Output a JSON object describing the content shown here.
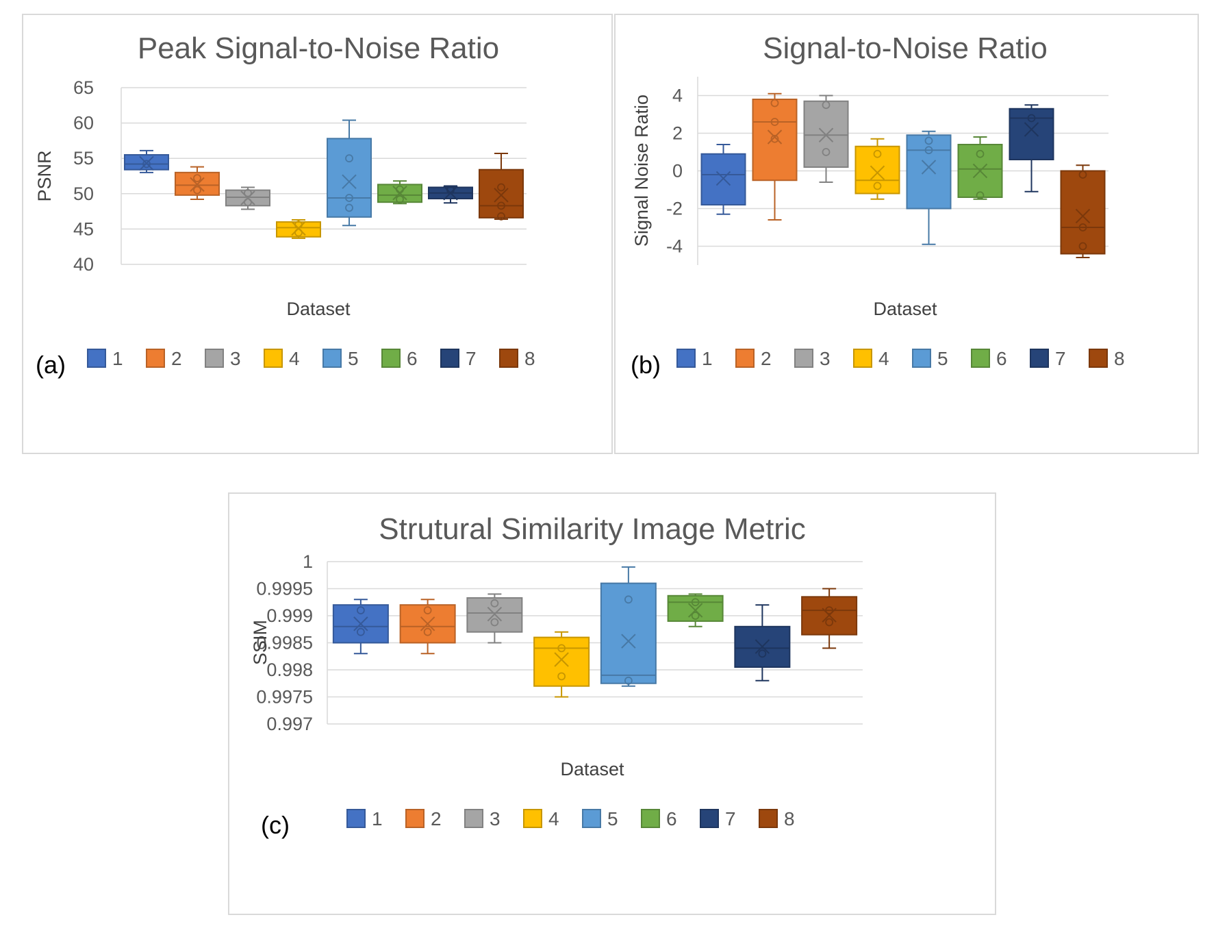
{
  "colors": [
    "#4472c4",
    "#ed7d31",
    "#a5a5a5",
    "#ffc000",
    "#5b9bd5",
    "#70ad47",
    "#264478",
    "#9e480e"
  ],
  "legend_labels": [
    "1",
    "2",
    "3",
    "4",
    "5",
    "6",
    "7",
    "8"
  ],
  "chart_data": [
    {
      "type": "boxplot",
      "panel_label": "(a)",
      "title": "Peak Signal-to-Noise Ratio",
      "xlabel": "Dataset",
      "ylabel": "PSNR",
      "ylim": [
        40,
        65
      ],
      "yticks": [
        40,
        45,
        50,
        55,
        60,
        65
      ],
      "ytick_labels": [
        "40",
        "45",
        "50",
        "55",
        "60",
        "65"
      ],
      "series": [
        {
          "name": "1",
          "min": 53.0,
          "q1": 53.4,
          "median": 54.2,
          "q3": 55.5,
          "max": 56.1,
          "mean": 54.3,
          "points": [
            54.2
          ]
        },
        {
          "name": "2",
          "min": 49.2,
          "q1": 49.8,
          "median": 51.2,
          "q3": 53.0,
          "max": 53.8,
          "mean": 51.3,
          "points": [
            52.2,
            50.5
          ]
        },
        {
          "name": "3",
          "min": 47.8,
          "q1": 48.3,
          "median": 49.5,
          "q3": 50.5,
          "max": 50.9,
          "mean": 49.4,
          "points": [
            50.1,
            48.8
          ]
        },
        {
          "name": "4",
          "min": 43.7,
          "q1": 43.9,
          "median": 45.2,
          "q3": 46.0,
          "max": 46.3,
          "mean": 45.1,
          "points": [
            45.6,
            44.5
          ]
        },
        {
          "name": "5",
          "min": 45.5,
          "q1": 46.7,
          "median": 49.4,
          "q3": 57.8,
          "max": 60.4,
          "mean": 51.7,
          "points": [
            55.0,
            49.4,
            48.0
          ]
        },
        {
          "name": "6",
          "min": 48.6,
          "q1": 48.8,
          "median": 49.8,
          "q3": 51.3,
          "max": 51.8,
          "mean": 50.1,
          "points": [
            50.6,
            49.2
          ]
        },
        {
          "name": "7",
          "min": 48.7,
          "q1": 49.3,
          "median": 50.1,
          "q3": 50.9,
          "max": 51.1,
          "mean": 50.1,
          "points": [
            50.5
          ]
        },
        {
          "name": "8",
          "min": 46.4,
          "q1": 46.6,
          "median": 48.3,
          "q3": 53.4,
          "max": 55.7,
          "mean": 49.8,
          "points": [
            50.9,
            48.3,
            46.8
          ]
        }
      ]
    },
    {
      "type": "boxplot",
      "panel_label": "(b)",
      "title": "Signal-to-Noise Ratio",
      "xlabel": "Dataset",
      "ylabel": "Signal Noise Ratio",
      "ylim": [
        -5,
        5
      ],
      "yticks": [
        -4,
        -2,
        0,
        2,
        4
      ],
      "ytick_labels": [
        "-4",
        "-2",
        "0",
        "2",
        "4"
      ],
      "series": [
        {
          "name": "1",
          "min": -2.3,
          "q1": -1.8,
          "median": -0.2,
          "q3": 0.9,
          "max": 1.4,
          "mean": -0.4,
          "points": []
        },
        {
          "name": "2",
          "min": -2.6,
          "q1": -0.5,
          "median": 2.6,
          "q3": 3.8,
          "max": 4.1,
          "mean": 1.8,
          "points": [
            3.6,
            2.6,
            1.7
          ]
        },
        {
          "name": "3",
          "min": -0.6,
          "q1": 0.2,
          "median": 1.9,
          "q3": 3.7,
          "max": 4.0,
          "mean": 1.9,
          "points": [
            3.5,
            1.0
          ]
        },
        {
          "name": "4",
          "min": -1.5,
          "q1": -1.2,
          "median": -0.5,
          "q3": 1.3,
          "max": 1.7,
          "mean": -0.1,
          "points": [
            0.9,
            -0.8
          ]
        },
        {
          "name": "5",
          "min": -3.9,
          "q1": -2.0,
          "median": 1.1,
          "q3": 1.9,
          "max": 2.1,
          "mean": 0.2,
          "points": [
            1.6,
            1.1
          ]
        },
        {
          "name": "6",
          "min": -1.5,
          "q1": -1.4,
          "median": 0.1,
          "q3": 1.4,
          "max": 1.8,
          "mean": 0.0,
          "points": [
            0.9,
            -1.3
          ]
        },
        {
          "name": "7",
          "min": -1.1,
          "q1": 0.6,
          "median": 2.8,
          "q3": 3.3,
          "max": 3.5,
          "mean": 2.2,
          "points": [
            2.8
          ]
        },
        {
          "name": "8",
          "min": -4.6,
          "q1": -4.4,
          "median": -3.0,
          "q3": 0.0,
          "max": 0.3,
          "mean": -2.4,
          "points": [
            -0.2,
            -3.0,
            -4.0
          ]
        }
      ]
    },
    {
      "type": "boxplot",
      "panel_label": "(c)",
      "title": "Strutural Similarity Image Metric",
      "xlabel": "Dataset",
      "ylabel": "SSIM",
      "ylim": [
        0.997,
        1.0
      ],
      "yticks": [
        0.997,
        0.9975,
        0.998,
        0.9985,
        0.999,
        0.9995,
        1.0
      ],
      "ytick_labels": [
        "0.997",
        "0.9975",
        "0.998",
        "0.9985",
        "0.999",
        "0.9995",
        "1"
      ],
      "series": [
        {
          "name": "1",
          "min": 0.9983,
          "q1": 0.9985,
          "median": 0.9988,
          "q3": 0.9992,
          "max": 0.9993,
          "mean": 0.99885,
          "points": [
            0.9991,
            0.9987
          ]
        },
        {
          "name": "2",
          "min": 0.9983,
          "q1": 0.9985,
          "median": 0.9988,
          "q3": 0.9992,
          "max": 0.9993,
          "mean": 0.99885,
          "points": [
            0.9991,
            0.9987
          ]
        },
        {
          "name": "3",
          "min": 0.9985,
          "q1": 0.9987,
          "median": 0.99905,
          "q3": 0.99933,
          "max": 0.9994,
          "mean": 0.99903,
          "points": [
            0.99923,
            0.99888
          ]
        },
        {
          "name": "4",
          "min": 0.9975,
          "q1": 0.9977,
          "median": 0.9984,
          "q3": 0.9986,
          "max": 0.9987,
          "mean": 0.99819,
          "points": [
            0.9984,
            0.99788
          ]
        },
        {
          "name": "5",
          "min": 0.9977,
          "q1": 0.99775,
          "median": 0.9979,
          "q3": 0.9996,
          "max": 0.9999,
          "mean": 0.99853,
          "points": [
            0.9993,
            0.9978
          ]
        },
        {
          "name": "6",
          "min": 0.9988,
          "q1": 0.9989,
          "median": 0.99925,
          "q3": 0.99937,
          "max": 0.9994,
          "mean": 0.9991,
          "points": [
            0.99925,
            0.999
          ]
        },
        {
          "name": "7",
          "min": 0.9978,
          "q1": 0.99805,
          "median": 0.9984,
          "q3": 0.9988,
          "max": 0.9992,
          "mean": 0.99843,
          "points": [
            0.9983
          ]
        },
        {
          "name": "8",
          "min": 0.9984,
          "q1": 0.99865,
          "median": 0.9991,
          "q3": 0.99935,
          "max": 0.9995,
          "mean": 0.99901,
          "points": [
            0.9991,
            0.99888
          ]
        }
      ]
    }
  ]
}
